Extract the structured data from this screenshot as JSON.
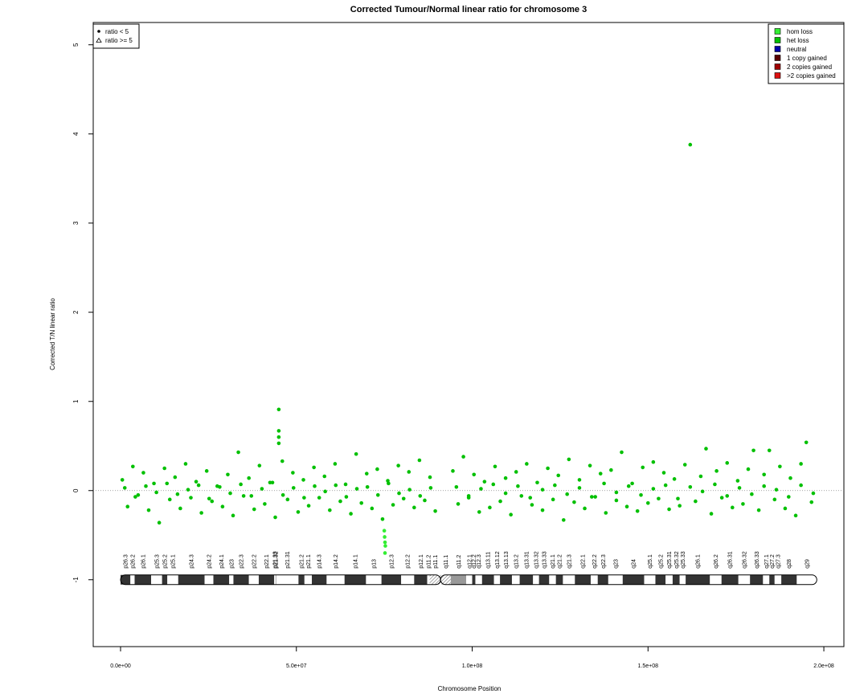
{
  "chart_data": {
    "type": "scatter",
    "title": "Corrected Tumour/Normal linear ratio for chromosome  3",
    "x_label": "Chromosome Position",
    "y_label": "Corrected T/N linear ratio",
    "xlim": [
      -7770000.0,
      205700000.0
    ],
    "ylim": [
      -1.75,
      5.25
    ],
    "xticks": [
      {
        "value": 0,
        "label": "0.0e+00"
      },
      {
        "value": 50000000.0,
        "label": "5.0e+07"
      },
      {
        "value": 100000000.0,
        "label": "1.0e+08"
      },
      {
        "value": 150000000.0,
        "label": "1.5e+08"
      },
      {
        "value": 200000000.0,
        "label": "2.0e+08"
      }
    ],
    "yticks": [
      -1,
      0,
      1,
      2,
      3,
      4,
      5
    ],
    "hline": 0,
    "shape_legend": [
      "ratio < 5",
      "ratio >= 5"
    ],
    "legend_position": "top-right",
    "series": [
      {
        "name": "hom loss",
        "color": "#33ee33",
        "x": [
          75000000.0,
          75100000.0,
          75200000.0,
          75300000.0,
          75200000.0
        ],
        "values": [
          -0.45,
          -0.52,
          -0.58,
          -0.62,
          -0.7
        ]
      },
      {
        "name": "het loss",
        "color": "#00c000",
        "x": [
          500000.0,
          2000000.0,
          3500000.0,
          5000000.0,
          6500000.0,
          8000000.0,
          9500000.0,
          11000000.0,
          12500000.0,
          14000000.0,
          15500000.0,
          17000000.0,
          18500000.0,
          20000000.0,
          21500000.0,
          23000000.0,
          24500000.0,
          26000000.0,
          27500000.0,
          29000000.0,
          30500000.0,
          32000000.0,
          33500000.0,
          35000000.0,
          36500000.0,
          38000000.0,
          39500000.0,
          41000000.0,
          42500000.0,
          44000000.0,
          46000000.0,
          47500000.0,
          49000000.0,
          50500000.0,
          52000000.0,
          53500000.0,
          55000000.0,
          56500000.0,
          58000000.0,
          59500000.0,
          61000000.0,
          62500000.0,
          64000000.0,
          65500000.0,
          67000000.0,
          68500000.0,
          70000000.0,
          71500000.0,
          73000000.0,
          74500000.0,
          76000000.0,
          77500000.0,
          79000000.0,
          80500000.0,
          82000000.0,
          83500000.0,
          85000000.0,
          86500000.0,
          88000000.0,
          89500000.0,
          1200000.0,
          4200000.0,
          7200000.0,
          10200000.0,
          13200000.0,
          16200000.0,
          19200000.0,
          22200000.0,
          25200000.0,
          28200000.0,
          31200000.0,
          34200000.0,
          37200000.0,
          40200000.0,
          43200000.0,
          46200000.0,
          49200000.0,
          52200000.0,
          55200000.0,
          58200000.0,
          61200000.0,
          64200000.0,
          67200000.0,
          70200000.0,
          73200000.0,
          76200000.0,
          79200000.0,
          82200000.0,
          85200000.0,
          88200000.0,
          45000000.0,
          45000000.0,
          45000000.0,
          45000000.0,
          94500000.0,
          96000000.0,
          97500000.0,
          99000000.0,
          100500000.0,
          102000000.0,
          103500000.0,
          105000000.0,
          106500000.0,
          108000000.0,
          109500000.0,
          111000000.0,
          112500000.0,
          114000000.0,
          115500000.0,
          117000000.0,
          118500000.0,
          120000000.0,
          121500000.0,
          123000000.0,
          124500000.0,
          126000000.0,
          127500000.0,
          129000000.0,
          130500000.0,
          132000000.0,
          133500000.0,
          135000000.0,
          136500000.0,
          138000000.0,
          139500000.0,
          141000000.0,
          142500000.0,
          144000000.0,
          145500000.0,
          147000000.0,
          148500000.0,
          150000000.0,
          151500000.0,
          153000000.0,
          154500000.0,
          156000000.0,
          157500000.0,
          159000000.0,
          160500000.0,
          162000000.0,
          163500000.0,
          165000000.0,
          166500000.0,
          168000000.0,
          169500000.0,
          171000000.0,
          172500000.0,
          174000000.0,
          175500000.0,
          177000000.0,
          178500000.0,
          180000000.0,
          181500000.0,
          183000000.0,
          184500000.0,
          186000000.0,
          187500000.0,
          189000000.0,
          190500000.0,
          192000000.0,
          193500000.0,
          195000000.0,
          196500000.0,
          95500000.0,
          99000000.0,
          102500000.0,
          106000000.0,
          109500000.0,
          113000000.0,
          116500000.0,
          120000000.0,
          123500000.0,
          127000000.0,
          130500000.0,
          134000000.0,
          137500000.0,
          141000000.0,
          144500000.0,
          148000000.0,
          151500000.0,
          155000000.0,
          158500000.0,
          162000000.0,
          165500000.0,
          169000000.0,
          172500000.0,
          176000000.0,
          179500000.0,
          183000000.0,
          186500000.0,
          190000000.0,
          193500000.0,
          197000000.0
        ],
        "values": [
          0.12,
          -0.18,
          0.27,
          -0.05,
          0.2,
          -0.22,
          0.08,
          -0.36,
          0.25,
          -0.1,
          0.15,
          -0.2,
          0.3,
          -0.08,
          0.1,
          -0.25,
          0.22,
          -0.12,
          0.05,
          -0.18,
          0.18,
          -0.28,
          0.43,
          -0.06,
          0.14,
          -0.21,
          0.28,
          -0.15,
          0.09,
          -0.3,
          0.33,
          -0.1,
          0.2,
          -0.24,
          0.12,
          -0.17,
          0.26,
          -0.08,
          0.16,
          -0.22,
          0.3,
          -0.12,
          0.07,
          -0.26,
          0.41,
          -0.14,
          0.19,
          -0.2,
          0.24,
          -0.32,
          0.11,
          -0.16,
          0.28,
          -0.09,
          0.21,
          -0.19,
          0.34,
          -0.11,
          0.15,
          -0.23,
          0.03,
          -0.07,
          0.05,
          -0.02,
          0.08,
          -0.04,
          0.01,
          0.06,
          -0.09,
          0.04,
          -0.03,
          0.07,
          -0.06,
          0.02,
          0.09,
          -0.05,
          0.03,
          -0.08,
          0.05,
          -0.01,
          0.06,
          -0.07,
          0.02,
          0.04,
          -0.05,
          0.08,
          -0.03,
          0.01,
          -0.06,
          0.03,
          0.91,
          0.67,
          0.6,
          0.53,
          0.22,
          -0.15,
          0.38,
          -0.08,
          0.18,
          -0.24,
          0.1,
          -0.19,
          0.27,
          -0.12,
          0.14,
          -0.27,
          0.21,
          -0.06,
          0.3,
          -0.16,
          0.09,
          -0.22,
          0.25,
          -0.1,
          0.17,
          -0.33,
          0.35,
          -0.13,
          0.12,
          -0.2,
          0.28,
          -0.07,
          0.19,
          -0.25,
          0.23,
          -0.11,
          0.43,
          -0.18,
          0.08,
          -0.23,
          0.26,
          -0.14,
          0.32,
          -0.09,
          0.2,
          -0.21,
          0.13,
          -0.17,
          0.29,
          3.88,
          -0.12,
          0.16,
          0.47,
          -0.26,
          0.22,
          -0.08,
          0.31,
          -0.19,
          0.11,
          -0.15,
          0.24,
          0.45,
          -0.22,
          0.18,
          0.45,
          -0.1,
          0.27,
          -0.2,
          0.14,
          -0.28,
          0.3,
          0.54,
          -0.13,
          0.04,
          -0.06,
          0.02,
          0.07,
          -0.03,
          0.05,
          -0.08,
          0.01,
          0.06,
          -0.04,
          0.03,
          -0.07,
          0.08,
          -0.02,
          0.05,
          -0.05,
          0.02,
          0.06,
          -0.09,
          0.04,
          -0.01,
          0.07,
          -0.06,
          0.03,
          -0.04,
          0.05,
          0.01,
          -0.07,
          0.06,
          -0.03
        ]
      },
      {
        "name": "neutral",
        "color": "#0000aa",
        "x": [],
        "values": []
      },
      {
        "name": "1 copy gained",
        "color": "#5a0000",
        "x": [],
        "values": []
      },
      {
        "name": "2 copies gained",
        "color": "#a00000",
        "x": [],
        "values": []
      },
      {
        "name": ">2 copies gained",
        "color": "#dd1111",
        "x": [],
        "values": []
      }
    ],
    "ideogram": {
      "y": -1,
      "bands": [
        {
          "name": "p26.3",
          "start": 0,
          "end": 2800000.0,
          "stain": "gpos50"
        },
        {
          "name": "p26.2",
          "start": 2800000.0,
          "end": 4000000.0,
          "stain": "gneg"
        },
        {
          "name": "p26.1",
          "start": 4000000.0,
          "end": 8700000.0,
          "stain": "gpos50"
        },
        {
          "name": "p25.3",
          "start": 8700000.0,
          "end": 11800000.0,
          "stain": "gneg"
        },
        {
          "name": "p25.2",
          "start": 11800000.0,
          "end": 13300000.0,
          "stain": "gpos25"
        },
        {
          "name": "p25.1",
          "start": 13300000.0,
          "end": 16400000.0,
          "stain": "gneg"
        },
        {
          "name": "p24.3",
          "start": 16400000.0,
          "end": 23900000.0,
          "stain": "gpos100"
        },
        {
          "name": "p24.2",
          "start": 23900000.0,
          "end": 26400000.0,
          "stain": "gneg"
        },
        {
          "name": "p24.1",
          "start": 26400000.0,
          "end": 30900000.0,
          "stain": "gpos75"
        },
        {
          "name": "p23",
          "start": 30900000.0,
          "end": 32100000.0,
          "stain": "gneg"
        },
        {
          "name": "p22.3",
          "start": 32100000.0,
          "end": 36500000.0,
          "stain": "gpos50"
        },
        {
          "name": "p22.2",
          "start": 36500000.0,
          "end": 39300000.0,
          "stain": "gneg"
        },
        {
          "name": "p22.1",
          "start": 39300000.0,
          "end": 43700000.0,
          "stain": "gpos75"
        },
        {
          "name": "p21.33",
          "start": 43700000.0,
          "end": 44100000.0,
          "stain": "gneg"
        },
        {
          "name": "p21.32",
          "start": 44100000.0,
          "end": 44200000.0,
          "stain": "gpos50"
        },
        {
          "name": "p21.31",
          "start": 44200000.0,
          "end": 50600000.0,
          "stain": "gneg"
        },
        {
          "name": "p21.2",
          "start": 50600000.0,
          "end": 52300000.0,
          "stain": "gpos25"
        },
        {
          "name": "p21.1",
          "start": 52300000.0,
          "end": 54400000.0,
          "stain": "gneg"
        },
        {
          "name": "p14.3",
          "start": 54400000.0,
          "end": 58600000.0,
          "stain": "gpos50"
        },
        {
          "name": "p14.2",
          "start": 58600000.0,
          "end": 63700000.0,
          "stain": "gneg"
        },
        {
          "name": "p14.1",
          "start": 63700000.0,
          "end": 69800000.0,
          "stain": "gpos50"
        },
        {
          "name": "p13",
          "start": 69800000.0,
          "end": 74200000.0,
          "stain": "gneg"
        },
        {
          "name": "p12.3",
          "start": 74200000.0,
          "end": 79800000.0,
          "stain": "gpos75"
        },
        {
          "name": "p12.2",
          "start": 79800000.0,
          "end": 83500000.0,
          "stain": "gneg"
        },
        {
          "name": "p12.1",
          "start": 83500000.0,
          "end": 87200000.0,
          "stain": "gpos75"
        },
        {
          "name": "p11.2",
          "start": 87200000.0,
          "end": 87900000.0,
          "stain": "gneg"
        },
        {
          "name": "p11.1",
          "start": 87900000.0,
          "end": 91000000.0,
          "stain": "acen"
        },
        {
          "name": "q11.1",
          "start": 91000000.0,
          "end": 93900000.0,
          "stain": "acen"
        },
        {
          "name": "q11.2",
          "start": 93900000.0,
          "end": 98300000.0,
          "stain": "gvar"
        },
        {
          "name": "q12.1",
          "start": 98300000.0,
          "end": 100000000.0,
          "stain": "gneg"
        },
        {
          "name": "q12.2",
          "start": 100000000.0,
          "end": 100900000.0,
          "stain": "gpos25"
        },
        {
          "name": "q12.3",
          "start": 100900000.0,
          "end": 102800000.0,
          "stain": "gneg"
        },
        {
          "name": "q13.11",
          "start": 102800000.0,
          "end": 106200000.0,
          "stain": "gpos75"
        },
        {
          "name": "q13.12",
          "start": 106200000.0,
          "end": 107900000.0,
          "stain": "gneg"
        },
        {
          "name": "q13.13",
          "start": 107900000.0,
          "end": 111300000.0,
          "stain": "gpos50"
        },
        {
          "name": "q13.2",
          "start": 111300000.0,
          "end": 113500000.0,
          "stain": "gneg"
        },
        {
          "name": "q13.31",
          "start": 113500000.0,
          "end": 117300000.0,
          "stain": "gpos75"
        },
        {
          "name": "q13.32",
          "start": 117300000.0,
          "end": 119000000.0,
          "stain": "gneg"
        },
        {
          "name": "q13.33",
          "start": 119000000.0,
          "end": 121900000.0,
          "stain": "gpos75"
        },
        {
          "name": "q21.1",
          "start": 121900000.0,
          "end": 123800000.0,
          "stain": "gneg"
        },
        {
          "name": "q21.2",
          "start": 123800000.0,
          "end": 125800000.0,
          "stain": "gpos25"
        },
        {
          "name": "q21.3",
          "start": 125800000.0,
          "end": 129200000.0,
          "stain": "gneg"
        },
        {
          "name": "q22.1",
          "start": 129200000.0,
          "end": 133700000.0,
          "stain": "gpos25"
        },
        {
          "name": "q22.2",
          "start": 133700000.0,
          "end": 135700000.0,
          "stain": "gneg"
        },
        {
          "name": "q22.3",
          "start": 135700000.0,
          "end": 138700000.0,
          "stain": "gpos25"
        },
        {
          "name": "q23",
          "start": 138700000.0,
          "end": 142800000.0,
          "stain": "gneg"
        },
        {
          "name": "q24",
          "start": 142800000.0,
          "end": 148900000.0,
          "stain": "gpos100"
        },
        {
          "name": "q25.1",
          "start": 148900000.0,
          "end": 152100000.0,
          "stain": "gneg"
        },
        {
          "name": "q25.2",
          "start": 152100000.0,
          "end": 155000000.0,
          "stain": "gpos50"
        },
        {
          "name": "q25.31",
          "start": 155000000.0,
          "end": 157000000.0,
          "stain": "gneg"
        },
        {
          "name": "q25.32",
          "start": 157000000.0,
          "end": 159000000.0,
          "stain": "gpos50"
        },
        {
          "name": "q25.33",
          "start": 159000000.0,
          "end": 160700000.0,
          "stain": "gneg"
        },
        {
          "name": "q26.1",
          "start": 160700000.0,
          "end": 167600000.0,
          "stain": "gpos100"
        },
        {
          "name": "q26.2",
          "start": 167600000.0,
          "end": 170900000.0,
          "stain": "gneg"
        },
        {
          "name": "q26.31",
          "start": 170900000.0,
          "end": 175700000.0,
          "stain": "gpos75"
        },
        {
          "name": "q26.32",
          "start": 175700000.0,
          "end": 179000000.0,
          "stain": "gneg"
        },
        {
          "name": "q26.33",
          "start": 179000000.0,
          "end": 182700000.0,
          "stain": "gpos75"
        },
        {
          "name": "q27.1",
          "start": 182700000.0,
          "end": 184500000.0,
          "stain": "gneg"
        },
        {
          "name": "q27.2",
          "start": 184500000.0,
          "end": 186000000.0,
          "stain": "gpos25"
        },
        {
          "name": "q27.3",
          "start": 186000000.0,
          "end": 187900000.0,
          "stain": "gneg"
        },
        {
          "name": "q28",
          "start": 187900000.0,
          "end": 192300000.0,
          "stain": "gpos75"
        },
        {
          "name": "q29",
          "start": 192300000.0,
          "end": 198000000.0,
          "stain": "gneg"
        }
      ]
    }
  }
}
